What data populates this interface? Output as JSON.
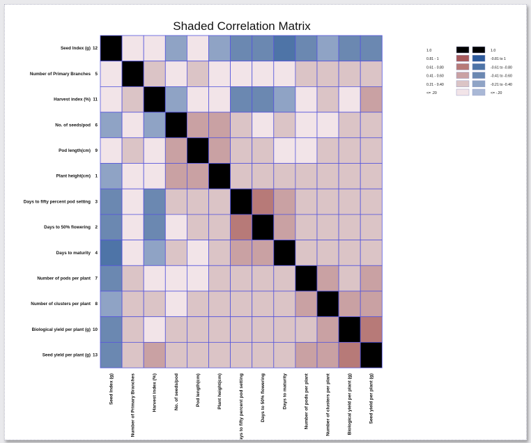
{
  "chart_data": {
    "type": "heatmap",
    "title": "Shaded Correlation Matrix",
    "row_labels": [
      "Seed Index (g)",
      "Number of Primary Branches",
      "Harvest index (%)",
      "No. of seeds/pod",
      "Pod length(cm)",
      "Plant height(cm)",
      "Days to fifty percent pod setting",
      "Days to 50% flowering",
      "Days to maturity",
      "Number of pods per plant",
      "Number of clusters per plant",
      "Biological yield per plant (g)",
      "Seed yield per plant (g)"
    ],
    "row_numbers": [
      "12",
      "5",
      "11",
      "6",
      "9",
      "1",
      "3",
      "2",
      "4",
      "7",
      "8",
      "10",
      "13"
    ],
    "col_labels": [
      "Seed Index (g)",
      "Number of Primary Branches",
      "Harvest index (%)",
      "No. of seeds/pod",
      "Pod length(cm)",
      "Plant height(cm)",
      "Days to fifty percent pod setting",
      "Days to 50% flowering",
      "Days to maturity",
      "Number of pods per plant",
      "Number of clusters per plant",
      "Biological yield per plant (g)",
      "Seed yield per plant (g)"
    ],
    "values": [
      [
        1.0,
        0.12,
        0.1,
        -0.35,
        0.15,
        -0.35,
        -0.5,
        -0.55,
        -0.65,
        -0.5,
        -0.35,
        -0.5,
        -0.5
      ],
      [
        0.12,
        1.0,
        0.3,
        0.15,
        0.3,
        0.15,
        0.12,
        0.12,
        0.12,
        0.3,
        0.3,
        0.3,
        0.25
      ],
      [
        0.1,
        0.3,
        1.0,
        -0.35,
        0.12,
        0.12,
        -0.5,
        -0.45,
        -0.35,
        0.12,
        0.25,
        0.1,
        0.45
      ],
      [
        -0.35,
        0.15,
        -0.35,
        1.0,
        0.45,
        0.45,
        0.3,
        0.15,
        0.3,
        0.15,
        0.12,
        0.25,
        0.3
      ],
      [
        0.15,
        0.3,
        0.12,
        0.45,
        1.0,
        0.45,
        0.3,
        0.25,
        0.15,
        0.15,
        0.25,
        0.3,
        0.3
      ],
      [
        -0.35,
        0.15,
        0.12,
        0.45,
        0.45,
        1.0,
        0.4,
        0.35,
        0.35,
        0.3,
        0.3,
        0.4,
        0.4
      ],
      [
        -0.5,
        0.12,
        -0.5,
        0.3,
        0.3,
        0.4,
        1.0,
        0.7,
        0.45,
        0.25,
        0.25,
        0.3,
        0.3
      ],
      [
        -0.55,
        0.12,
        -0.45,
        0.15,
        0.25,
        0.35,
        0.7,
        1.0,
        0.55,
        0.25,
        0.25,
        0.3,
        0.3
      ],
      [
        -0.65,
        0.12,
        -0.35,
        0.3,
        0.15,
        0.35,
        0.45,
        0.55,
        1.0,
        0.25,
        0.25,
        0.4,
        0.3
      ],
      [
        -0.5,
        0.3,
        0.12,
        0.15,
        0.15,
        0.3,
        0.25,
        0.25,
        0.25,
        1.0,
        0.55,
        0.4,
        0.45
      ],
      [
        -0.35,
        0.3,
        0.25,
        0.12,
        0.25,
        0.3,
        0.25,
        0.25,
        0.25,
        0.55,
        1.0,
        0.45,
        0.55
      ],
      [
        -0.5,
        0.3,
        0.1,
        0.25,
        0.3,
        0.4,
        0.3,
        0.3,
        0.4,
        0.4,
        0.45,
        1.0,
        0.7
      ],
      [
        -0.5,
        0.25,
        0.45,
        0.3,
        0.3,
        0.4,
        0.3,
        0.3,
        0.3,
        0.45,
        0.55,
        0.7,
        1.0
      ]
    ],
    "legend": {
      "placement": "top-right",
      "positive": [
        {
          "label": "1.0",
          "color": "#000000"
        },
        {
          "label": "0.81 - 1",
          "color": "#a85a5c"
        },
        {
          "label": "0.61 - 0.80",
          "color": "#b77a78"
        },
        {
          "label": "0.41 - 0.60",
          "color": "#c9a1a3"
        },
        {
          "label": "0.21 - 0.40",
          "color": "#dbc4c6"
        },
        {
          "label": "<= .20",
          "color": "#f2e4e8"
        }
      ],
      "negative": [
        {
          "label": "1.0",
          "color": "#000000"
        },
        {
          "label": "-0.81 to 1",
          "color": "#2d5b9c"
        },
        {
          "label": "-0.61 to -0.80",
          "color": "#4e74a7"
        },
        {
          "label": "-0.41 to -0.60",
          "color": "#6b88b1"
        },
        {
          "label": "-0.21 to -0.40",
          "color": "#8fa3c5"
        },
        {
          "label": "<= -.20",
          "color": "#a9b8d6"
        }
      ]
    },
    "grid_line_color": "#5555dd"
  }
}
